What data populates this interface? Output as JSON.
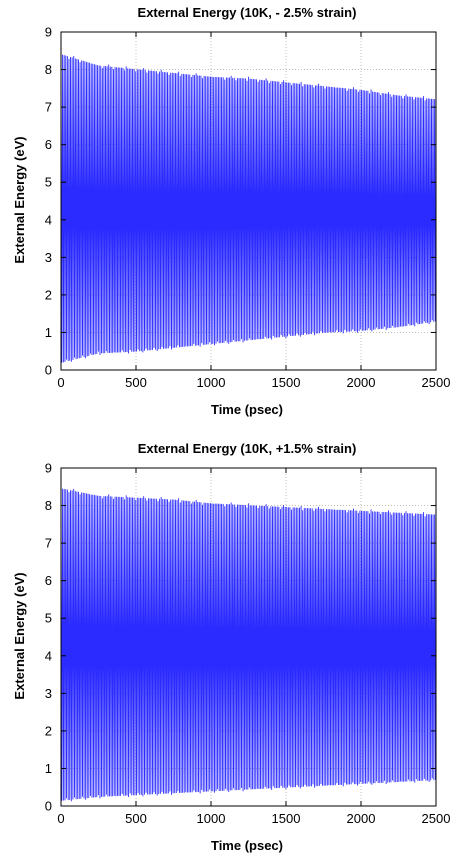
{
  "chart_data": [
    {
      "type": "line",
      "title": "External Energy (10K, - 2.5% strain)",
      "xlabel": "Time (psec)",
      "ylabel": "External Energy (eV)",
      "xlim": [
        0,
        2500
      ],
      "ylim": [
        0,
        9
      ],
      "xticks": [
        0,
        500,
        1000,
        1500,
        2000,
        2500
      ],
      "yticks": [
        0,
        1,
        2,
        3,
        4,
        5,
        6,
        7,
        8,
        9
      ],
      "grid": true,
      "series": [
        {
          "color": "#2b2bff",
          "style": "dense oscillation between upper and lower envelopes",
          "x": [
            0,
            250,
            500,
            750,
            1000,
            1250,
            1500,
            1750,
            2000,
            2250,
            2500
          ],
          "upper": [
            8.4,
            8.1,
            8.0,
            7.9,
            7.8,
            7.75,
            7.65,
            7.55,
            7.45,
            7.3,
            7.2
          ],
          "lower": [
            0.2,
            0.45,
            0.5,
            0.6,
            0.7,
            0.8,
            0.9,
            1.0,
            1.05,
            1.15,
            1.3
          ]
        }
      ]
    },
    {
      "type": "line",
      "title": "External Energy (10K, +1.5% strain)",
      "xlabel": "Time (psec)",
      "ylabel": "External Energy (eV)",
      "xlim": [
        0,
        2500
      ],
      "ylim": [
        0,
        9
      ],
      "xticks": [
        0,
        500,
        1000,
        1500,
        2000,
        2500
      ],
      "yticks": [
        0,
        1,
        2,
        3,
        4,
        5,
        6,
        7,
        8,
        9
      ],
      "grid": true,
      "series": [
        {
          "color": "#2b2bff",
          "style": "dense oscillation between upper and lower envelopes",
          "x": [
            0,
            250,
            500,
            750,
            1000,
            1250,
            1500,
            1750,
            2000,
            2250,
            2500
          ],
          "upper": [
            8.45,
            8.25,
            8.2,
            8.15,
            8.05,
            8.0,
            7.95,
            7.9,
            7.85,
            7.8,
            7.75
          ],
          "lower": [
            0.15,
            0.25,
            0.3,
            0.35,
            0.4,
            0.45,
            0.5,
            0.55,
            0.6,
            0.65,
            0.7
          ]
        }
      ]
    }
  ]
}
